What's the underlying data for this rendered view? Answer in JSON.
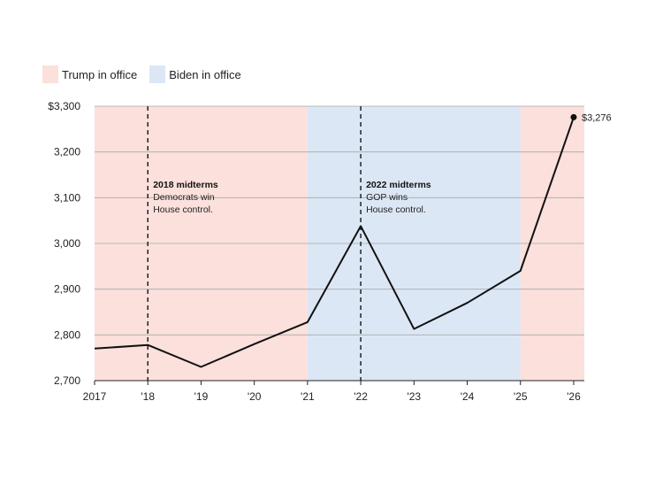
{
  "legend": {
    "items": [
      {
        "label": "Trump in office",
        "color": "#fbe0dc"
      },
      {
        "label": "Biden in office",
        "color": "#dce7f5"
      }
    ]
  },
  "chart_data": {
    "type": "line",
    "title": "",
    "xlabel": "",
    "ylabel": "",
    "ylim": [
      2700,
      3300
    ],
    "xlim": [
      2017,
      2026.2
    ],
    "x": [
      2017,
      2018,
      2019,
      2020,
      2021,
      2022,
      2023,
      2024,
      2025,
      2026
    ],
    "x_tick_labels": [
      "2017",
      "'18",
      "'19",
      "'20",
      "'21",
      "'22",
      "'23",
      "'24",
      "'25",
      "'26"
    ],
    "y_ticks": [
      2700,
      2800,
      2900,
      3000,
      3100,
      3200,
      3300
    ],
    "y_tick_labels": [
      "2,700",
      "2,800",
      "2,900",
      "3,000",
      "3,100",
      "3,200",
      "$3,300"
    ],
    "series": [
      {
        "values": [
          2770,
          2778,
          2730,
          2780,
          2828,
          3038,
          2813,
          2870,
          2940,
          3276
        ],
        "color": "#111111"
      }
    ],
    "bands": [
      {
        "from": 2017,
        "to": 2021,
        "label": "Trump in office",
        "color": "#fbe0dc"
      },
      {
        "from": 2021,
        "to": 2025,
        "label": "Biden in office",
        "color": "#dce7f5"
      },
      {
        "from": 2025,
        "to": 2026.2,
        "label": "Trump in office",
        "color": "#fbe0dc"
      }
    ],
    "grid": true,
    "annotations": [
      {
        "x": 2018,
        "title": "2018 midterms",
        "lines": [
          "Democrats win",
          "House control."
        ]
      },
      {
        "x": 2022,
        "title": "2022 midterms",
        "lines": [
          "GOP wins",
          "House control."
        ]
      }
    ],
    "end_label": "$3,276"
  }
}
